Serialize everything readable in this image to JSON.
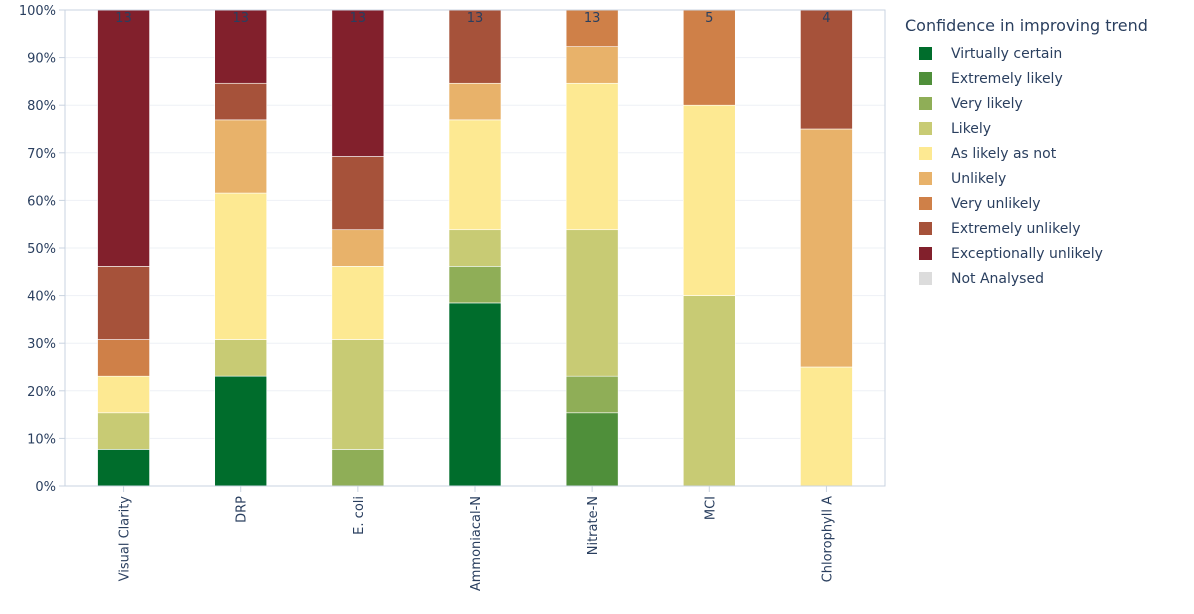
{
  "chart_data": {
    "type": "bar",
    "stacked": true,
    "categories": [
      "Visual Clarity",
      "DRP",
      "E. coli",
      "Ammoniacal-N",
      "Nitrate-N",
      "MCI",
      "Chlorophyll A"
    ],
    "counts": [
      "13",
      "13",
      "13",
      "13",
      "13",
      "5",
      "4"
    ],
    "ylim": [
      0,
      100
    ],
    "yticks": [
      "0%",
      "10%",
      "20%",
      "30%",
      "40%",
      "50%",
      "60%",
      "70%",
      "80%",
      "90%",
      "100%"
    ],
    "legend_title": "Confidence in improving trend",
    "legend_position": "right",
    "series": [
      {
        "name": "Virtually certain",
        "color": "#006d2c",
        "values": [
          7.69,
          23.08,
          0,
          38.46,
          0,
          0,
          0
        ]
      },
      {
        "name": "Extremely likely",
        "color": "#4f8f3a",
        "values": [
          0,
          0,
          0,
          0,
          15.38,
          0,
          0
        ]
      },
      {
        "name": "Very likely",
        "color": "#8fae57",
        "values": [
          0,
          0,
          7.69,
          7.69,
          7.69,
          0,
          0
        ]
      },
      {
        "name": "Likely",
        "color": "#c8cb74",
        "values": [
          7.69,
          7.69,
          23.08,
          7.69,
          30.77,
          40,
          0
        ]
      },
      {
        "name": "As likely as not",
        "color": "#fde992",
        "values": [
          7.69,
          30.77,
          15.38,
          23.08,
          30.77,
          40,
          25
        ]
      },
      {
        "name": "Unlikely",
        "color": "#e8b26a",
        "values": [
          0,
          15.38,
          7.69,
          7.69,
          7.69,
          0,
          50
        ]
      },
      {
        "name": "Very unlikely",
        "color": "#cf8048",
        "values": [
          7.69,
          0,
          0,
          0,
          7.69,
          20,
          0
        ]
      },
      {
        "name": "Extremely unlikely",
        "color": "#a6523a",
        "values": [
          15.38,
          7.69,
          15.38,
          15.38,
          0,
          0,
          25
        ]
      },
      {
        "name": "Exceptionally unlikely",
        "color": "#82202c",
        "values": [
          53.85,
          15.38,
          30.77,
          0,
          0,
          0,
          0
        ]
      },
      {
        "name": "Not Analysed",
        "color": "#dcdcdc",
        "values": [
          0,
          0,
          0,
          0,
          0,
          0,
          0
        ]
      }
    ]
  }
}
